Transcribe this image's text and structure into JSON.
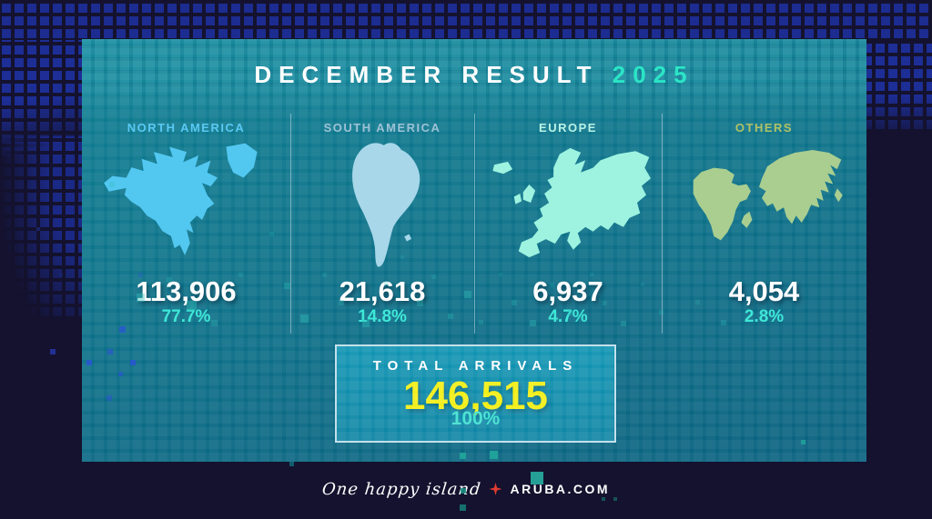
{
  "title": {
    "main": "DECEMBER RESULT",
    "year": "2025"
  },
  "regions": [
    {
      "name": "NORTH AMERICA",
      "value": "113,906",
      "percent": "77.7%",
      "label_color": "#59c9f3",
      "map_color": "#52c7f0"
    },
    {
      "name": "SOUTH AMERICA",
      "value": "21,618",
      "percent": "14.8%",
      "label_color": "#9cc2d6",
      "map_color": "#a8d7ea"
    },
    {
      "name": "EUROPE",
      "value": "6,937",
      "percent": "4.7%",
      "label_color": "#b9f3e6",
      "map_color": "#9df3e0"
    },
    {
      "name": "OTHERS",
      "value": "4,054",
      "percent": "2.8%",
      "label_color": "#b0c266",
      "map_color": "#a9ce90"
    }
  ],
  "total": {
    "label": "TOTAL ARRIVALS",
    "value": "146,515",
    "percent": "100%"
  },
  "footer": {
    "tagline": "One happy island",
    "brand": "ARUBA.COM"
  },
  "icons": {
    "brand_separator": "aruba-star-icon"
  },
  "colors": {
    "outer_background": "#14122e",
    "outer_squares": "#1d2e96",
    "panel_top": "#107f93",
    "panel_bottom": "#0a6280",
    "title_text": "#ffffff",
    "year_accent": "#2be5c6",
    "percent_text": "#3fe8d8",
    "value_text": "#ffffff",
    "total_box_fill": "#1195b3",
    "total_box_border": "#d8e9f2",
    "total_value_yellow": "#f2ee14",
    "total_percent": "#3fe0d0",
    "brand_red": "#e23b31"
  },
  "chart_data": {
    "type": "table",
    "title": "DECEMBER RESULT 2025",
    "categories": [
      "NORTH AMERICA",
      "SOUTH AMERICA",
      "EUROPE",
      "OTHERS"
    ],
    "values": [
      113906,
      21618,
      6937,
      4054
    ],
    "percentages": [
      77.7,
      14.8,
      4.7,
      2.8
    ],
    "total": {
      "label": "TOTAL ARRIVALS",
      "value": 146515,
      "percentage": 100
    },
    "legend_position": "none",
    "grid": false
  }
}
